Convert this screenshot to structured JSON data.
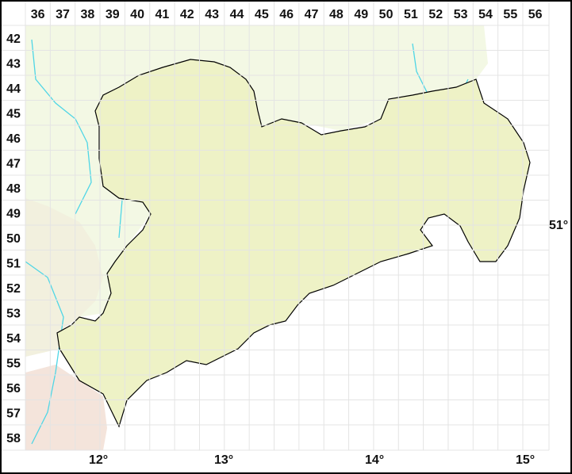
{
  "grid": {
    "columns": [
      "36",
      "37",
      "38",
      "39",
      "40",
      "41",
      "42",
      "43",
      "44",
      "45",
      "46",
      "47",
      "48",
      "49",
      "50",
      "51",
      "52",
      "53",
      "54",
      "55",
      "56"
    ],
    "rows": [
      "42",
      "43",
      "44",
      "45",
      "46",
      "47",
      "48",
      "49",
      "50",
      "51",
      "52",
      "53",
      "54",
      "55",
      "56",
      "57",
      "58"
    ]
  },
  "longitude_labels": [
    "12°",
    "13°",
    "14°",
    "15°"
  ],
  "latitude_labels": [
    "51°"
  ],
  "colors": {
    "outside_north": "#f4f8e6",
    "outside_south": "#ffffff",
    "lowland": "#eef2c6",
    "hills": "#e6dfae",
    "uplands": "#d8c892",
    "mountains": "#e3a88a",
    "river": "#4fd6e6",
    "border": "#000000",
    "grid": "#e8e8e8"
  }
}
